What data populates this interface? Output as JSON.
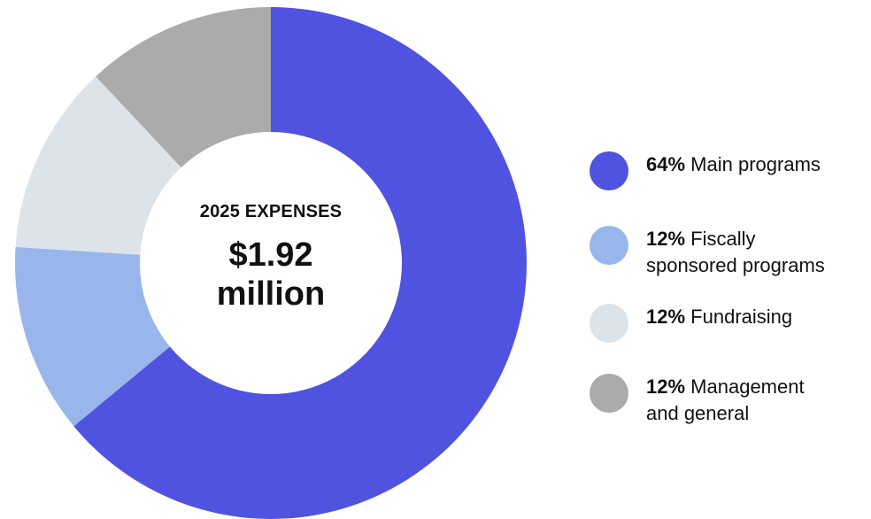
{
  "chart_data": {
    "type": "pie",
    "variant": "donut",
    "center": {
      "title": "2025 EXPENSES",
      "value_line1": "$1.92",
      "value_line2": "million"
    },
    "slices": [
      {
        "label": "Main programs",
        "percent_label": "64%",
        "value": 64,
        "color": "#5053E0"
      },
      {
        "label": "Fiscally\nsponsored programs",
        "percent_label": "12%",
        "value": 12,
        "color": "#98B6EC"
      },
      {
        "label": "Fundraising",
        "percent_label": "12%",
        "value": 12,
        "color": "#DCE4EA"
      },
      {
        "label": "Management\nand general",
        "percent_label": "12%",
        "value": 12,
        "color": "#ABABAB"
      }
    ],
    "legend_placement": "right"
  }
}
